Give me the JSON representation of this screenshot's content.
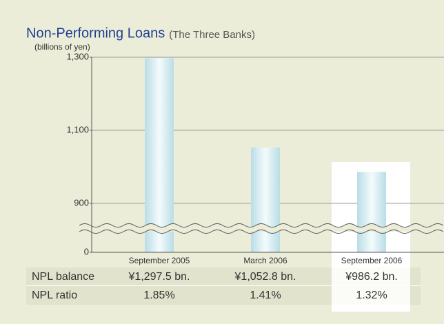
{
  "chart_data": {
    "type": "bar",
    "title": "Non-Performing Loans",
    "subtitle": "(The Three Banks)",
    "y_axis_label": "(billions of yen)",
    "categories": [
      "September 2005",
      "March 2006",
      "September 2006"
    ],
    "series": [
      {
        "name": "NPL balance",
        "values": [
          1297.5,
          1052.8,
          986.2
        ],
        "value_labels": [
          "¥1,297.5 bn.",
          "¥1,052.8 bn.",
          "¥986.2 bn."
        ]
      }
    ],
    "ylim": [
      0,
      1300
    ],
    "yticks": [
      0,
      900,
      {
        "value": 1100,
        "label": "1,100"
      },
      {
        "value": 1300,
        "label": "1,300"
      }
    ],
    "axis_break": true,
    "grid": true
  },
  "table": {
    "rows": [
      [
        "NPL ratio",
        "1.85%",
        "1.41%",
        "1.32%"
      ]
    ]
  }
}
